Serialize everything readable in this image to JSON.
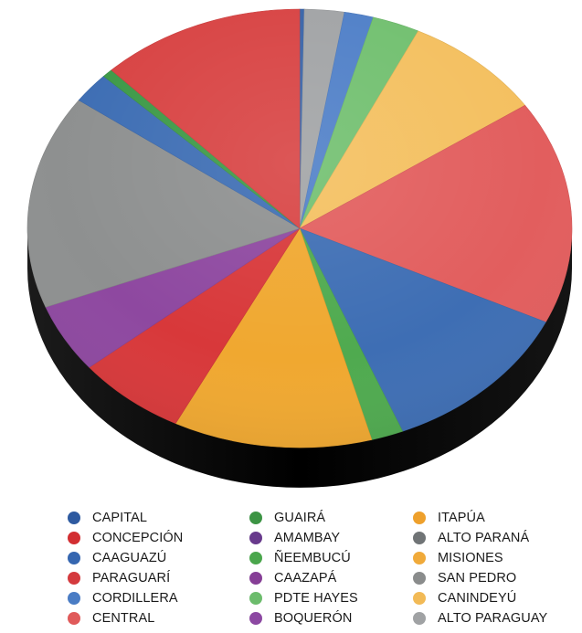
{
  "chart_data": {
    "type": "pie",
    "style": "3d",
    "legend_position": "bottom",
    "categories": [
      "CAPITAL",
      "CONCEPCIÓN",
      "CAAGUAZÚ",
      "PARAGUARÍ",
      "CORDILLERA",
      "CENTRAL",
      "GUAIRÁ",
      "AMAMBAY",
      "ÑEEMBUCÚ",
      "CAAZAPÁ",
      "PDTE HAYES",
      "BOQUERÓN",
      "ITAPÚA",
      "ALTO PARANÁ",
      "MISIONES",
      "SAN PEDRO",
      "CANINDEYÚ",
      "ALTO PARAGUAY"
    ],
    "colors": [
      "#3A64A8",
      "#D8383A",
      "#3E6EB4",
      "#D84444",
      "#5080C8",
      "#E25E5E",
      "#3E9A48",
      "#6A3A8A",
      "#4FAA4F",
      "#8A3E96",
      "#72C070",
      "#8E48A0",
      "#F0A830",
      "#7E8284",
      "#F2B040",
      "#8E9090",
      "#F4C060",
      "#A2A4A6"
    ],
    "slices": [
      {
        "category": "CAPITAL",
        "value": 0.3
      },
      {
        "category": "ALTO PARAGUAY",
        "value": 2.6
      },
      {
        "category": "CORDILLERA",
        "value": 1.9
      },
      {
        "category": "PDTE HAYES",
        "value": 3.1
      },
      {
        "category": "CANINDEYÚ",
        "value": 9.2
      },
      {
        "category": "CENTRAL",
        "value": 18.2
      },
      {
        "category": "CAAGUAZÚ",
        "value": 13.0
      },
      {
        "category": "ÑEEMBUCÚ",
        "value": 2.1
      },
      {
        "category": "ITAPÚA",
        "value": 13.0
      },
      {
        "category": "CONCEPCIÓN",
        "value": 7.2
      },
      {
        "category": "BOQUERÓN",
        "value": 5.6
      },
      {
        "category": "SAN PEDRO",
        "value": 17.4
      },
      {
        "category": "CAAGUAZÚ",
        "value": 2.5
      },
      {
        "category": "GUAIRÁ",
        "value": 0.7
      },
      {
        "category": "PARAGUARÍ",
        "value": 13.4
      }
    ]
  },
  "legend": {
    "columns": [
      [
        {
          "label": "CAPITAL",
          "color": "#2E5AA0"
        },
        {
          "label": "CONCEPCIÓN",
          "color": "#D22E32"
        },
        {
          "label": "CAAGUAZÚ",
          "color": "#3566B0"
        },
        {
          "label": "PARAGUARÍ",
          "color": "#D43A3E"
        },
        {
          "label": "CORDILLERA",
          "color": "#4A7CC4"
        },
        {
          "label": "CENTRAL",
          "color": "#E05A5A"
        }
      ],
      [
        {
          "label": "GUAIRÁ",
          "color": "#3C9444"
        },
        {
          "label": "AMAMBAY",
          "color": "#683A8C"
        },
        {
          "label": "ÑEEMBUCÚ",
          "color": "#4AA64C"
        },
        {
          "label": "CAAZAPÁ",
          "color": "#863E96"
        },
        {
          "label": "PDTE HAYES",
          "color": "#6CBC6C"
        },
        {
          "label": "BOQUERÓN",
          "color": "#8C48A2"
        }
      ],
      [
        {
          "label": "ITAPÚA",
          "color": "#EEA02C"
        },
        {
          "label": "ALTO PARANÁ",
          "color": "#707476"
        },
        {
          "label": "MISIONES",
          "color": "#F0AA3A"
        },
        {
          "label": "SAN PEDRO",
          "color": "#8A8C8C"
        },
        {
          "label": "CANINDEYÚ",
          "color": "#F2BA56"
        },
        {
          "label": "ALTO PARAGUAY",
          "color": "#A0A2A4"
        }
      ]
    ]
  }
}
